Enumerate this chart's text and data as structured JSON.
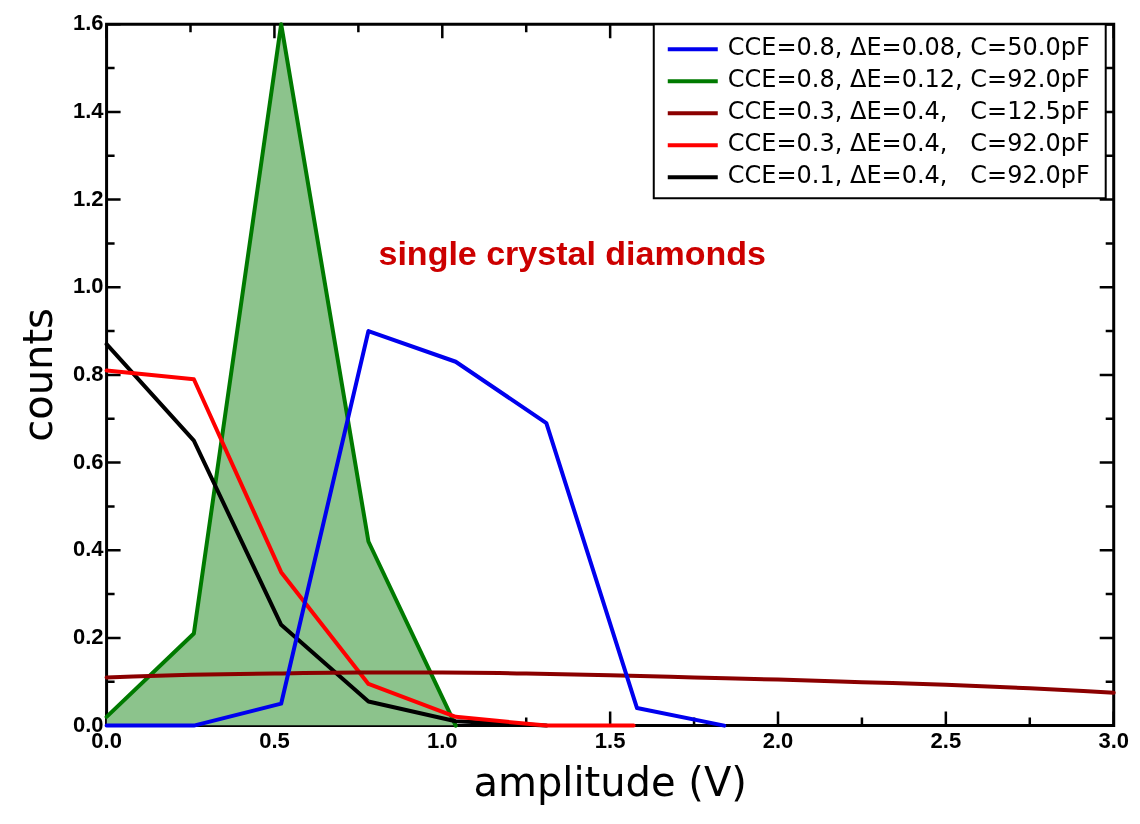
{
  "chart_data": {
    "type": "line",
    "xlabel": "amplitude (V)",
    "ylabel": "counts",
    "annotations": [
      "single crystal diamonds"
    ],
    "series": [
      {
        "name": "CCE=0.8, ΔE=0.08, C=50.0pF",
        "color": "#0000ee",
        "x": [
          0,
          0.26,
          0.52,
          0.78,
          1.04,
          1.31,
          1.58,
          1.84
        ],
        "values": [
          0,
          0,
          0.05,
          0.9,
          0.83,
          0.69,
          0.04,
          0
        ]
      },
      {
        "name": "CCE=0.8, ΔE=0.12, C=92.0pF",
        "type": "area",
        "color": "#007a00",
        "x": [
          0,
          0.26,
          0.52,
          0.78,
          1.04
        ],
        "values": [
          0.02,
          0.21,
          1.6,
          0.42,
          0
        ]
      },
      {
        "name": "CCE=0.3, ΔE=0.4,   C=12.5pF",
        "color": "#8b0000",
        "x": [
          0,
          0.25,
          0.5,
          0.75,
          1.0,
          1.25,
          1.5,
          1.75,
          2.0,
          2.25,
          2.5,
          2.75,
          3.0
        ],
        "values": [
          0.11,
          0.116,
          0.119,
          0.121,
          0.121,
          0.119,
          0.115,
          0.11,
          0.105,
          0.099,
          0.093,
          0.085,
          0.075
        ]
      },
      {
        "name": "CCE=0.3, ΔE=0.4,   C=92.0pF",
        "color": "#ff0000",
        "x": [
          0,
          0.26,
          0.52,
          0.78,
          1.04,
          1.31,
          1.57
        ],
        "values": [
          0.81,
          0.79,
          0.35,
          0.095,
          0.02,
          0,
          0
        ]
      },
      {
        "name": "CCE=0.1, ΔE=0.4,   C=92.0pF",
        "color": "#000000",
        "x": [
          0,
          0.26,
          0.52,
          0.78,
          1.04,
          1.31
        ],
        "values": [
          0.87,
          0.65,
          0.23,
          0.055,
          0.01,
          0
        ]
      }
    ],
    "xlim": [
      0,
      3
    ],
    "xticks": [
      {
        "value": 0,
        "label": "0.0"
      },
      {
        "value": 0.25,
        "label": null
      },
      {
        "value": 0.5,
        "label": "0.5"
      },
      {
        "value": 0.75,
        "label": null
      },
      {
        "value": 1,
        "label": "1.0"
      },
      {
        "value": 1.25,
        "label": null
      },
      {
        "value": 1.5,
        "label": "1.5"
      },
      {
        "value": 1.75,
        "label": null
      },
      {
        "value": 2,
        "label": "2.0"
      },
      {
        "value": 2.25,
        "label": null
      },
      {
        "value": 2.5,
        "label": "2.5"
      },
      {
        "value": 2.75,
        "label": null
      },
      {
        "value": 3,
        "label": "3.0"
      }
    ],
    "ylim": [
      0,
      1.6
    ],
    "yticks": [
      {
        "value": 0,
        "label": "0.0"
      },
      {
        "value": 0.1,
        "label": null
      },
      {
        "value": 0.2,
        "label": "0.2"
      },
      {
        "value": 0.3,
        "label": null
      },
      {
        "value": 0.4,
        "label": "0.4"
      },
      {
        "value": 0.5,
        "label": null
      },
      {
        "value": 0.6,
        "label": "0.6"
      },
      {
        "value": 0.7,
        "label": null
      },
      {
        "value": 0.8,
        "label": "0.8"
      },
      {
        "value": 0.9,
        "label": null
      },
      {
        "value": 1.0,
        "label": "1.0"
      },
      {
        "value": 1.1,
        "label": null
      },
      {
        "value": 1.2,
        "label": "1.2"
      },
      {
        "value": 1.3,
        "label": null
      },
      {
        "value": 1.4,
        "label": "1.4"
      },
      {
        "value": 1.5,
        "label": null
      },
      {
        "value": 1.6,
        "label": "1.6"
      }
    ],
    "grid": false,
    "legend": "top right",
    "marker": "none",
    "line_style": "solid"
  }
}
